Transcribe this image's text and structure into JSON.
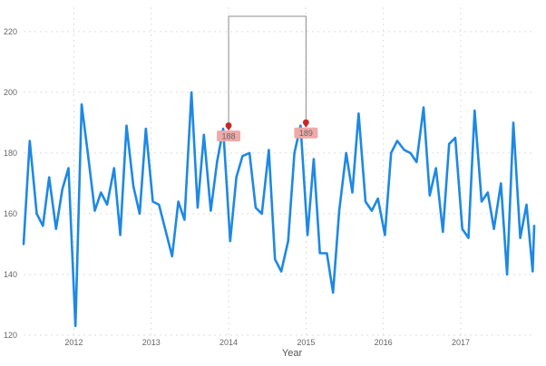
{
  "colors": {
    "series": "#1e88e5",
    "marker": "#c62828",
    "marker_label_bg": "#efa9a9",
    "connector": "#8c8c8c",
    "grid": "#dddddd"
  },
  "chart_data": {
    "type": "line",
    "xlabel": "Year",
    "ylabel": "",
    "ylim": [
      120,
      228
    ],
    "yticks": [
      120,
      140,
      160,
      180,
      200,
      220
    ],
    "xlim": [
      2011.35,
      2017.95
    ],
    "xticks": [
      {
        "value": 2012,
        "label": "2012"
      },
      {
        "value": 2013,
        "label": "2013"
      },
      {
        "value": 2014,
        "label": "2014"
      },
      {
        "value": 2015,
        "label": "2015"
      },
      {
        "value": 2016,
        "label": "2016"
      },
      {
        "value": 2017,
        "label": "2017"
      }
    ],
    "grid": true,
    "x": [
      2011.35,
      2011.43,
      2011.52,
      2011.6,
      2011.68,
      2011.77,
      2011.85,
      2011.93,
      2012.02,
      2012.1,
      2012.18,
      2012.27,
      2012.35,
      2012.43,
      2012.52,
      2012.6,
      2012.68,
      2012.77,
      2012.85,
      2012.93,
      2013.02,
      2013.1,
      2013.18,
      2013.27,
      2013.35,
      2013.43,
      2013.52,
      2013.6,
      2013.68,
      2013.77,
      2013.85,
      2013.93,
      2014.02,
      2014.1,
      2014.18,
      2014.27,
      2014.35,
      2014.43,
      2014.52,
      2014.6,
      2014.68,
      2014.77,
      2014.85,
      2014.93,
      2015.02,
      2015.1,
      2015.18,
      2015.27,
      2015.35,
      2015.43,
      2015.52,
      2015.6,
      2015.68,
      2015.77,
      2015.85,
      2015.93,
      2016.02,
      2016.1,
      2016.18,
      2016.27,
      2016.35,
      2016.43,
      2016.52,
      2016.6,
      2016.68,
      2016.77,
      2016.85,
      2016.93,
      2017.02,
      2017.1,
      2017.18,
      2017.27,
      2017.35,
      2017.43,
      2017.52,
      2017.6,
      2017.68,
      2017.77,
      2017.85,
      2017.93,
      2017.95
    ],
    "y": [
      150,
      184,
      160,
      156,
      172,
      155,
      168,
      175,
      123,
      196,
      180,
      161,
      167,
      163,
      175,
      153,
      189,
      169,
      160,
      188,
      164,
      163,
      155,
      146,
      164,
      158,
      200,
      162,
      186,
      161,
      177,
      188,
      151,
      172,
      179,
      180,
      162,
      160,
      181,
      145,
      141,
      151,
      180,
      189,
      153,
      178,
      147,
      147,
      134,
      161,
      180,
      167,
      193,
      164,
      161,
      165,
      153,
      180,
      184,
      181,
      180,
      177,
      195,
      166,
      175,
      154,
      183,
      185,
      155,
      152,
      194,
      164,
      167,
      155,
      170,
      140,
      190,
      152,
      163,
      141,
      156
    ],
    "markers": [
      {
        "x": 2014.0,
        "y": 188,
        "label": "188"
      },
      {
        "x": 2015.0,
        "y": 189,
        "label": "189"
      }
    ]
  }
}
